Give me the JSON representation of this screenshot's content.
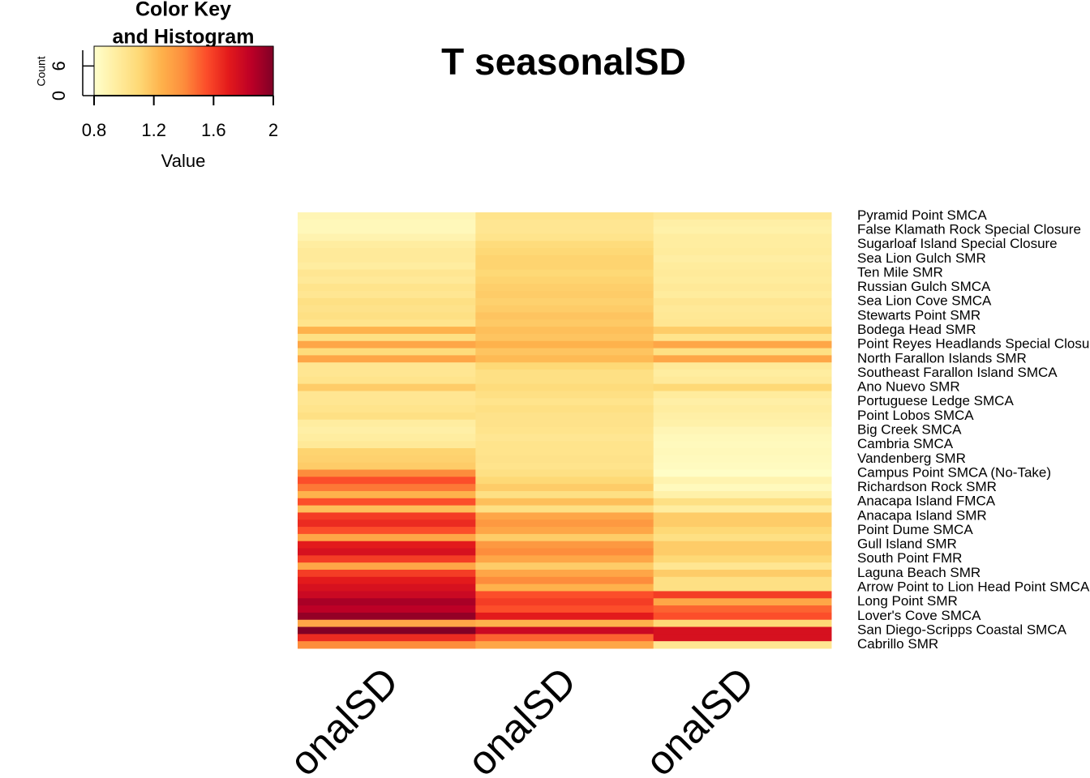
{
  "chart_data": {
    "type": "heatmap",
    "title": "T seasonalSD",
    "columns": [
      "onalSD",
      "onalSD",
      "onalSD"
    ],
    "categories": [
      "Pyramid Point SMCA",
      null,
      "False Klamath Rock Special Closure",
      null,
      "Sugarloaf Island Special Closure",
      null,
      "Sea Lion Gulch SMR",
      null,
      "Ten Mile SMR",
      null,
      "Russian Gulch SMCA",
      null,
      "Sea Lion Cove SMCA",
      null,
      "Stewarts Point SMR",
      null,
      "Bodega Head SMR",
      null,
      "Point Reyes Headlands Special Closure",
      null,
      "North Farallon Islands SMR",
      null,
      "Southeast Farallon Island SMCA",
      null,
      "Ano Nuevo SMR",
      null,
      "Portuguese Ledge SMCA",
      null,
      "Point Lobos SMCA",
      null,
      "Big Creek SMCA",
      null,
      "Cambria SMCA",
      null,
      "Vandenberg SMR",
      null,
      "Campus Point SMCA (No-Take)",
      null,
      "Richardson Rock SMR",
      null,
      "Anacapa Island FMCA",
      null,
      "Anacapa Island SMR",
      null,
      "Point Dume SMCA",
      null,
      "Gull Island SMR",
      null,
      "South Point FMR",
      null,
      "Laguna Beach SMR",
      null,
      "Arrow Point to Lion Head Point SMCA",
      null,
      "Long Point SMR",
      null,
      "Lover's Cove SMCA",
      null,
      "San Diego-Scripps Coastal SMCA",
      null,
      "Cabrillo SMR"
    ],
    "values": [
      [
        0.88,
        1.02,
        0.98
      ],
      [
        0.86,
        1.0,
        0.93
      ],
      [
        0.86,
        1.0,
        0.92
      ],
      [
        0.9,
        1.02,
        0.95
      ],
      [
        0.95,
        1.08,
        0.95
      ],
      [
        0.97,
        1.1,
        0.96
      ],
      [
        0.97,
        1.12,
        0.94
      ],
      [
        0.95,
        1.12,
        0.96
      ],
      [
        1.0,
        1.1,
        0.97
      ],
      [
        0.98,
        1.12,
        0.96
      ],
      [
        1.02,
        1.14,
        0.98
      ],
      [
        1.0,
        1.15,
        0.96
      ],
      [
        1.05,
        1.13,
        1.0
      ],
      [
        1.03,
        1.15,
        0.98
      ],
      [
        1.05,
        1.18,
        0.99
      ],
      [
        1.02,
        1.16,
        1.0
      ],
      [
        1.25,
        1.2,
        1.15
      ],
      [
        1.05,
        1.18,
        1.02
      ],
      [
        1.3,
        1.25,
        1.3
      ],
      [
        1.08,
        1.18,
        1.05
      ],
      [
        1.3,
        1.22,
        1.3
      ],
      [
        1.0,
        1.1,
        0.98
      ],
      [
        1.0,
        1.05,
        0.95
      ],
      [
        1.02,
        1.05,
        0.97
      ],
      [
        1.15,
        1.08,
        1.1
      ],
      [
        1.0,
        1.05,
        0.96
      ],
      [
        1.0,
        1.02,
        0.93
      ],
      [
        1.02,
        1.05,
        0.95
      ],
      [
        1.05,
        1.03,
        0.93
      ],
      [
        0.95,
        1.03,
        0.92
      ],
      [
        0.93,
        1.02,
        0.88
      ],
      [
        0.95,
        1.0,
        0.86
      ],
      [
        0.98,
        1.02,
        0.85
      ],
      [
        1.12,
        1.02,
        0.86
      ],
      [
        1.13,
        1.03,
        0.85
      ],
      [
        1.15,
        1.02,
        0.84
      ],
      [
        1.4,
        1.05,
        0.82
      ],
      [
        1.55,
        1.1,
        0.9
      ],
      [
        1.45,
        1.15,
        0.85
      ],
      [
        1.25,
        1.05,
        0.92
      ],
      [
        1.55,
        1.2,
        1.05
      ],
      [
        1.2,
        1.05,
        0.95
      ],
      [
        1.6,
        1.3,
        1.15
      ],
      [
        1.65,
        1.35,
        1.15
      ],
      [
        1.55,
        1.3,
        1.1
      ],
      [
        1.3,
        1.15,
        1.05
      ],
      [
        1.7,
        1.35,
        1.15
      ],
      [
        1.75,
        1.4,
        1.15
      ],
      [
        1.6,
        1.3,
        1.1
      ],
      [
        1.3,
        1.15,
        1.0
      ],
      [
        1.6,
        1.3,
        1.15
      ],
      [
        1.7,
        1.4,
        1.05
      ],
      [
        1.75,
        1.25,
        1.05
      ],
      [
        1.8,
        1.55,
        1.6
      ],
      [
        1.9,
        1.6,
        1.3
      ],
      [
        1.85,
        1.55,
        1.5
      ],
      [
        1.95,
        1.7,
        1.55
      ],
      [
        1.3,
        1.25,
        1.1
      ],
      [
        2.0,
        1.8,
        1.75
      ],
      [
        1.65,
        1.5,
        1.75
      ],
      [
        1.4,
        1.3,
        1.0
      ]
    ],
    "colorscale": [
      "#ffffcc",
      "#ffeda0",
      "#fed976",
      "#feb24c",
      "#fd8d3c",
      "#fc4e2a",
      "#e31a1c",
      "#bd0026",
      "#800026"
    ],
    "key": {
      "title": [
        "Color Key",
        "and Histogram"
      ],
      "xlabel": "Value",
      "ylabel": "Count",
      "xlim": [
        0.8,
        2
      ],
      "xticks": [
        0.8,
        1.2,
        1.6,
        2
      ],
      "ylim": [
        0,
        10
      ],
      "yticks": [
        0,
        6
      ]
    }
  }
}
